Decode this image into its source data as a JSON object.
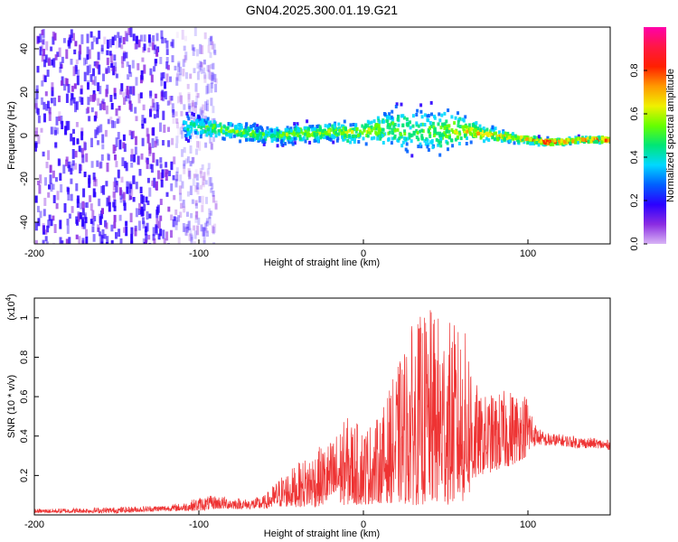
{
  "title": "GN04.2025.300.01.19.G21",
  "chart_data": [
    {
      "type": "heatmap",
      "name": "spectrogram",
      "xlabel": "Height of straight line (km)",
      "ylabel": "Frequency (Hz)",
      "xlim": [
        -200,
        150
      ],
      "ylim": [
        -50,
        50
      ],
      "xticks": [
        -200,
        -100,
        0,
        100
      ],
      "yticks": [
        -40,
        -20,
        0,
        20,
        40
      ],
      "colorbar": {
        "label": "Normalized spectral amplitude",
        "range": [
          0,
          1
        ],
        "ticks": [
          "0.0",
          "0.2",
          "0.4",
          "0.6",
          "0.8"
        ],
        "colors": [
          "#d8b4f5",
          "#8a2be2",
          "#2b00ff",
          "#0060ff",
          "#00d8ff",
          "#00e676",
          "#66ff00",
          "#f0f000",
          "#ff9900",
          "#ff2000",
          "#ff1744",
          "#ff00aa"
        ]
      },
      "ridge": {
        "description": "dominant frequency vs height",
        "x": [
          -110,
          -100,
          -90,
          -80,
          -70,
          -60,
          -50,
          -40,
          -30,
          -20,
          -10,
          0,
          10,
          20,
          30,
          40,
          50,
          60,
          70,
          80,
          90,
          100,
          110,
          120,
          130,
          140,
          150
        ],
        "y": [
          4,
          4,
          3,
          2,
          1,
          0,
          0,
          1,
          1,
          2,
          1,
          2,
          3,
          3,
          3,
          2,
          2,
          3,
          1,
          0,
          -1,
          -2,
          -3,
          -3,
          -2,
          -2,
          -2
        ],
        "amplitude": [
          0.45,
          0.5,
          0.55,
          0.55,
          0.55,
          0.5,
          0.55,
          0.6,
          0.6,
          0.6,
          0.65,
          0.6,
          0.6,
          0.55,
          0.55,
          0.55,
          0.6,
          0.7,
          0.75,
          0.75,
          0.7,
          0.7,
          0.9,
          0.8,
          0.75,
          0.9,
          0.75
        ],
        "spread_hz": [
          9,
          8,
          7,
          6,
          6,
          6,
          6,
          6,
          6,
          6,
          7,
          8,
          10,
          14,
          16,
          16,
          14,
          8,
          5,
          4,
          3,
          3,
          2,
          2,
          2,
          2,
          2
        ]
      },
      "noise_region": {
        "x": [
          -200,
          -105
        ],
        "amplitude": 0.2
      }
    },
    {
      "type": "line",
      "name": "snr",
      "xlabel": "Height of straight line (km)",
      "ylabel": "SNR (10 * v/v)",
      "yscale_label": "(x10",
      "yscale_exp": "4",
      "yscale_close": ")",
      "xlim": [
        -200,
        150
      ],
      "ylim": [
        0,
        1.1
      ],
      "xticks": [
        -200,
        -100,
        0,
        100
      ],
      "yticks": [
        "0.2",
        "0.4",
        "0.6",
        "0.8",
        "1"
      ],
      "color": "#ee3333",
      "envelope": {
        "x": [
          -200,
          -150,
          -120,
          -110,
          -100,
          -90,
          -80,
          -70,
          -60,
          -50,
          -40,
          -30,
          -20,
          -10,
          0,
          10,
          20,
          30,
          40,
          50,
          60,
          65,
          70,
          80,
          90,
          100,
          105,
          110,
          120,
          130,
          140,
          150
        ],
        "upper": [
          0.03,
          0.04,
          0.05,
          0.06,
          0.09,
          0.1,
          0.09,
          0.08,
          0.1,
          0.2,
          0.26,
          0.33,
          0.38,
          0.5,
          0.45,
          0.5,
          0.74,
          0.98,
          1.05,
          1.0,
          0.95,
          0.9,
          0.6,
          0.62,
          0.64,
          0.62,
          0.45,
          0.42,
          0.41,
          0.4,
          0.39,
          0.38
        ],
        "lower": [
          0.01,
          0.01,
          0.02,
          0.02,
          0.02,
          0.03,
          0.03,
          0.03,
          0.03,
          0.04,
          0.04,
          0.04,
          0.05,
          0.05,
          0.05,
          0.06,
          0.06,
          0.05,
          0.05,
          0.05,
          0.06,
          0.1,
          0.2,
          0.22,
          0.25,
          0.3,
          0.36,
          0.35,
          0.35,
          0.34,
          0.34,
          0.33
        ]
      }
    }
  ]
}
